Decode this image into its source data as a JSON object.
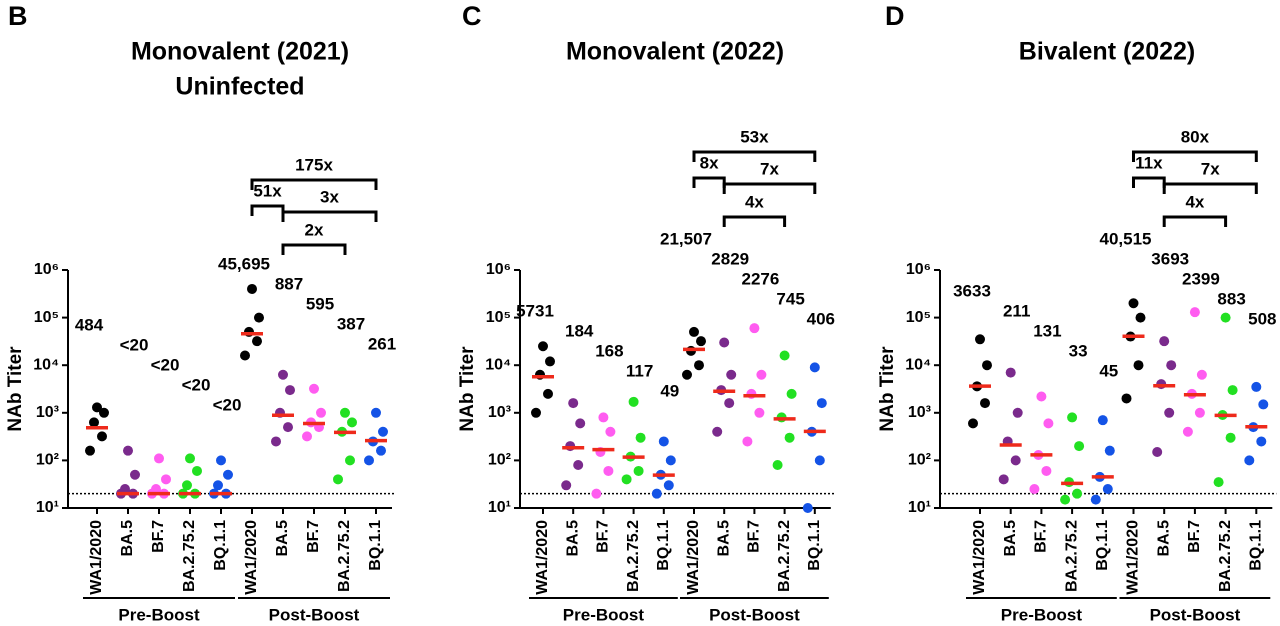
{
  "chart_data": [
    {
      "type": "dot",
      "panel": "B",
      "title": "Monovalent (2021)",
      "subtitle": "Uninfected",
      "ylabel": "NAb Titer",
      "log_y": true,
      "ylim": [
        10,
        1000000
      ],
      "yticks": [
        {
          "value": 10,
          "label": "10¹"
        },
        {
          "value": 100,
          "label": "10²"
        },
        {
          "value": 1000,
          "label": "10³"
        },
        {
          "value": 10000,
          "label": "10⁴"
        },
        {
          "value": 100000,
          "label": "10⁵"
        },
        {
          "value": 1000000,
          "label": "10⁶"
        }
      ],
      "limit": 20,
      "categories": [
        "WA1/2020",
        "BA.5",
        "BF.7",
        "BA.2.75.2",
        "BQ.1.1",
        "WA1/2020",
        "BA.5",
        "BF.7",
        "BA.2.75.2",
        "BQ.1.1"
      ],
      "colors": [
        "#000000",
        "#7a2a8c",
        "#ff5cf0",
        "#22e022",
        "#1453e6",
        "#000000",
        "#7a2a8c",
        "#ff5cf0",
        "#22e022",
        "#1453e6"
      ],
      "median_color": "#ee2a1b",
      "points": [
        [
          160,
          320,
          630,
          1000,
          1300
        ],
        [
          20,
          20,
          25,
          50,
          160
        ],
        [
          20,
          20,
          25,
          40,
          110
        ],
        [
          20,
          20,
          30,
          60,
          110
        ],
        [
          20,
          20,
          30,
          50,
          100
        ],
        [
          16000,
          32000,
          50000,
          100000,
          400000
        ],
        [
          250,
          500,
          1000,
          3000,
          6300
        ],
        [
          320,
          500,
          630,
          1000,
          3200
        ],
        [
          40,
          100,
          400,
          630,
          1000
        ],
        [
          100,
          160,
          250,
          400,
          1000
        ]
      ],
      "medians": [
        484,
        20,
        20,
        20,
        20,
        45695,
        887,
        595,
        387,
        261
      ],
      "value_labels": [
        "484",
        "<20",
        "<20",
        "<20",
        "<20",
        "45,695",
        "887",
        "595",
        "387",
        "261"
      ],
      "groups": [
        {
          "label": "Pre-Boost",
          "from": 0,
          "to": 4
        },
        {
          "label": "Post-Boost",
          "from": 5,
          "to": 9
        }
      ],
      "brackets": [
        {
          "label": "175x",
          "from": 5,
          "to": 9
        },
        {
          "label": "51x",
          "from": 5,
          "to": 6
        },
        {
          "label": "3x",
          "from": 6,
          "to": 9
        },
        {
          "label": "2x",
          "from": 6,
          "to": 8
        }
      ]
    },
    {
      "type": "dot",
      "panel": "C",
      "title": "Monovalent (2022)",
      "ylabel": "NAb Titer",
      "log_y": true,
      "ylim": [
        10,
        1000000
      ],
      "yticks": [
        {
          "value": 10,
          "label": "10¹"
        },
        {
          "value": 100,
          "label": "10²"
        },
        {
          "value": 1000,
          "label": "10³"
        },
        {
          "value": 10000,
          "label": "10⁴"
        },
        {
          "value": 100000,
          "label": "10⁵"
        },
        {
          "value": 1000000,
          "label": "10⁶"
        }
      ],
      "limit": 20,
      "categories": [
        "WA1/2020",
        "BA.5",
        "BF.7",
        "BA.2.75.2",
        "BQ.1.1",
        "WA1/2020",
        "BA.5",
        "BF.7",
        "BA.2.75.2",
        "BQ.1.1"
      ],
      "colors": [
        "#000000",
        "#7a2a8c",
        "#ff5cf0",
        "#22e022",
        "#1453e6",
        "#000000",
        "#7a2a8c",
        "#ff5cf0",
        "#22e022",
        "#1453e6"
      ],
      "median_color": "#ee2a1b",
      "points": [
        [
          1000,
          2500,
          6300,
          12000,
          25000
        ],
        [
          30,
          80,
          200,
          600,
          1600
        ],
        [
          20,
          60,
          150,
          400,
          800
        ],
        [
          40,
          60,
          120,
          300,
          1700
        ],
        [
          20,
          30,
          50,
          100,
          250
        ],
        [
          6300,
          10000,
          20000,
          32000,
          50000
        ],
        [
          400,
          1600,
          3000,
          6300,
          30000
        ],
        [
          250,
          1000,
          2500,
          6300,
          60000
        ],
        [
          80,
          300,
          800,
          2500,
          16000
        ],
        [
          10,
          100,
          400,
          1600,
          9000
        ]
      ],
      "medians": [
        5731,
        184,
        168,
        117,
        49,
        21507,
        2829,
        2276,
        745,
        406
      ],
      "value_labels": [
        "5731",
        "184",
        "168",
        "117",
        "49",
        "21,507",
        "2829",
        "2276",
        "745",
        "406"
      ],
      "groups": [
        {
          "label": "Pre-Boost",
          "from": 0,
          "to": 4
        },
        {
          "label": "Post-Boost",
          "from": 5,
          "to": 9
        }
      ],
      "brackets": [
        {
          "label": "53x",
          "from": 5,
          "to": 9
        },
        {
          "label": "8x",
          "from": 5,
          "to": 6
        },
        {
          "label": "7x",
          "from": 6,
          "to": 9
        },
        {
          "label": "4x",
          "from": 6,
          "to": 8
        }
      ]
    },
    {
      "type": "dot",
      "panel": "D",
      "title": "Bivalent (2022)",
      "ylabel": "NAb Titer",
      "log_y": true,
      "ylim": [
        10,
        1000000
      ],
      "yticks": [
        {
          "value": 10,
          "label": "10¹"
        },
        {
          "value": 100,
          "label": "10²"
        },
        {
          "value": 1000,
          "label": "10³"
        },
        {
          "value": 10000,
          "label": "10⁴"
        },
        {
          "value": 100000,
          "label": "10⁵"
        },
        {
          "value": 1000000,
          "label": "10⁶"
        }
      ],
      "limit": 20,
      "categories": [
        "WA1/2020",
        "BA.5",
        "BF.7",
        "BA.2.75.2",
        "BQ.1.1",
        "WA1/2020",
        "BA.5",
        "BF.7",
        "BA.2.75.2",
        "BQ.1.1"
      ],
      "colors": [
        "#000000",
        "#7a2a8c",
        "#ff5cf0",
        "#22e022",
        "#1453e6",
        "#000000",
        "#7a2a8c",
        "#ff5cf0",
        "#22e022",
        "#1453e6"
      ],
      "median_color": "#ee2a1b",
      "points": [
        [
          600,
          1600,
          3600,
          10000,
          35000
        ],
        [
          40,
          100,
          250,
          1000,
          7000
        ],
        [
          25,
          60,
          130,
          600,
          2200
        ],
        [
          15,
          20,
          35,
          200,
          800
        ],
        [
          15,
          25,
          45,
          160,
          700
        ],
        [
          2000,
          10000,
          40000,
          100000,
          200000
        ],
        [
          150,
          1000,
          4000,
          10000,
          32000
        ],
        [
          400,
          1000,
          2500,
          6300,
          130000
        ],
        [
          35,
          300,
          900,
          3000,
          100000
        ],
        [
          100,
          250,
          500,
          1500,
          3500
        ]
      ],
      "medians": [
        3633,
        211,
        131,
        33,
        45,
        40515,
        3693,
        2399,
        883,
        508
      ],
      "value_labels": [
        "3633",
        "211",
        "131",
        "33",
        "45",
        "40,515",
        "3693",
        "2399",
        "883",
        "508"
      ],
      "groups": [
        {
          "label": "Pre-Boost",
          "from": 0,
          "to": 4
        },
        {
          "label": "Post-Boost",
          "from": 5,
          "to": 9
        }
      ],
      "brackets": [
        {
          "label": "80x",
          "from": 5,
          "to": 9
        },
        {
          "label": "11x",
          "from": 5,
          "to": 6
        },
        {
          "label": "7x",
          "from": 6,
          "to": 9
        },
        {
          "label": "4x",
          "from": 6,
          "to": 8
        }
      ]
    }
  ]
}
